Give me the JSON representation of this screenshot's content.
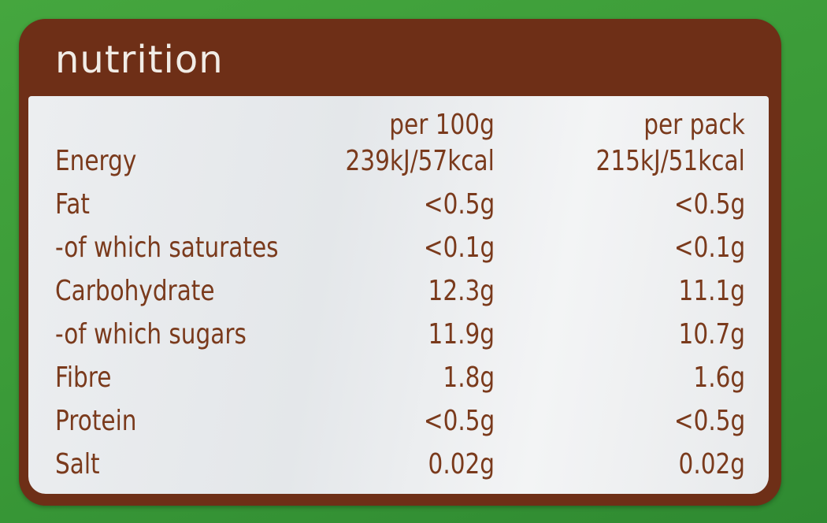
{
  "title": "nutrition",
  "columns": [
    "per 100g",
    "per pack"
  ],
  "rows": [
    {
      "label": "Energy",
      "per_100g": "239kJ/57kcal",
      "per_pack": "215kJ/51kcal"
    },
    {
      "label": "Fat",
      "per_100g": "<0.5g",
      "per_pack": "<0.5g"
    },
    {
      "label": "-of which saturates",
      "per_100g": "<0.1g",
      "per_pack": "<0.1g"
    },
    {
      "label": "Carbohydrate",
      "per_100g": "12.3g",
      "per_pack": "11.1g"
    },
    {
      "label": "-of which sugars",
      "per_100g": "11.9g",
      "per_pack": "10.7g"
    },
    {
      "label": "Fibre",
      "per_100g": "1.8g",
      "per_pack": "1.6g"
    },
    {
      "label": "Protein",
      "per_100g": "<0.5g",
      "per_pack": "<0.5g"
    },
    {
      "label": "Salt",
      "per_100g": "0.02g",
      "per_pack": "0.02g"
    }
  ],
  "colors": {
    "background": "#3a9a38",
    "panel": "#6e2f17",
    "text": "#7a3a1c"
  }
}
